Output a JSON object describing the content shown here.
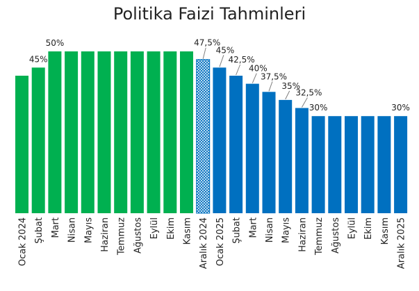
{
  "chart_data": {
    "type": "bar",
    "title": "Politika Faizi Tahminleri",
    "xlabel": "",
    "ylabel": "",
    "ylim": [
      0,
      50
    ],
    "grid": false,
    "legend": "none",
    "categories": [
      "Ocak 2024",
      "Şubat",
      "Mart",
      "Nisan",
      "Mayıs",
      "Haziran",
      "Temmuz",
      "Ağustos",
      "Eylül",
      "Ekim",
      "Kasım",
      "Aralık 2024",
      "Ocak 2025",
      "Şubat",
      "Mart",
      "Nisan",
      "Mayıs",
      "Haziran",
      "Temmuz",
      "Ağustos",
      "Eylül",
      "Ekim",
      "Kasım",
      "Aralık 2025"
    ],
    "values": [
      42.5,
      45,
      50,
      50,
      50,
      50,
      50,
      50,
      50,
      50,
      50,
      47.5,
      45,
      42.5,
      40,
      37.5,
      35,
      32.5,
      30,
      30,
      30,
      30,
      30,
      30
    ],
    "data_labels": [
      "",
      "45%",
      "50%",
      "",
      "",
      "",
      "",
      "",
      "",
      "",
      "",
      "47,5%",
      "45%",
      "42,5%",
      "40%",
      "37,5%",
      "35%",
      "32,5%",
      "30%",
      "",
      "",
      "",
      "",
      "30%"
    ],
    "bar_kind": [
      "actual",
      "actual",
      "actual",
      "actual",
      "actual",
      "actual",
      "actual",
      "actual",
      "actual",
      "actual",
      "actual",
      "hatched",
      "forecast",
      "forecast",
      "forecast",
      "forecast",
      "forecast",
      "forecast",
      "forecast",
      "forecast",
      "forecast",
      "forecast",
      "forecast",
      "forecast"
    ],
    "colors": {
      "actual": "#00b050",
      "forecast": "#0070c0",
      "hatched": "#0070c0",
      "leader": "#7f7f7f",
      "text": "#222222"
    }
  }
}
